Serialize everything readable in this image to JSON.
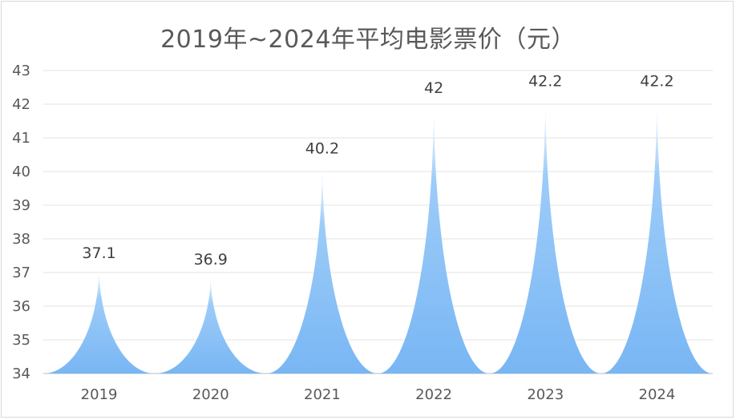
{
  "chart_data": {
    "type": "area",
    "title": "2019年~2024年平均电影票价（元）",
    "categories": [
      "2019",
      "2020",
      "2021",
      "2022",
      "2023",
      "2024"
    ],
    "values": [
      37.1,
      36.9,
      40.2,
      42,
      42.2,
      42.2
    ],
    "data_labels": [
      "37.1",
      "36.9",
      "40.2",
      "42",
      "42.2",
      "42.2"
    ],
    "ylim": [
      34,
      43
    ],
    "yticks": [
      "34",
      "35",
      "36",
      "37",
      "38",
      "39",
      "40",
      "41",
      "42",
      "43"
    ],
    "grid": true,
    "legend": "none",
    "color": "#7ab8f5"
  }
}
